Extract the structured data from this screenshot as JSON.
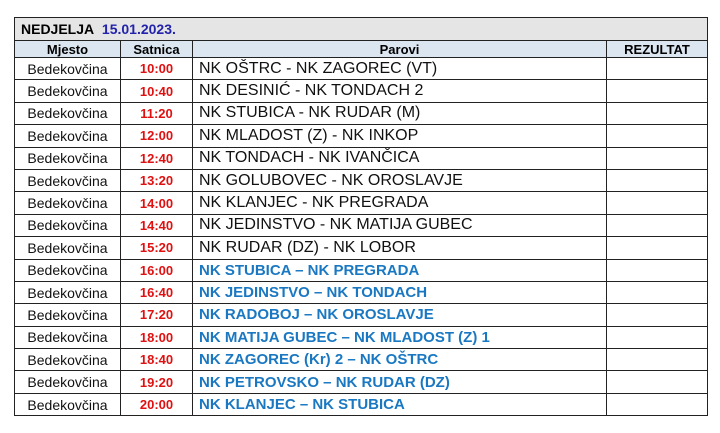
{
  "title": {
    "day": "NEDJELJA",
    "date": "15.01.2023."
  },
  "headers": {
    "mjesto": "Mjesto",
    "satnica": "Satnica",
    "parovi": "Parovi",
    "rezultat": "REZULTAT"
  },
  "colors": {
    "time": "#e01010",
    "highlight": "#1a78c2",
    "date": "#2222aa"
  },
  "rows": [
    {
      "mjesto": "Bedekovčina",
      "satnica": "10:00",
      "parovi": "NK OŠTRC - NK ZAGOREC (VT)",
      "rezultat": "",
      "hl": false
    },
    {
      "mjesto": "Bedekovčina",
      "satnica": "10:40",
      "parovi": "NK DESINIĆ - NK TONDACH 2",
      "rezultat": "",
      "hl": false
    },
    {
      "mjesto": "Bedekovčina",
      "satnica": "11:20",
      "parovi": "NK STUBICA - NK RUDAR (M)",
      "rezultat": "",
      "hl": false
    },
    {
      "mjesto": "Bedekovčina",
      "satnica": "12:00",
      "parovi": "NK MLADOST (Z) - NK INKOP",
      "rezultat": "",
      "hl": false
    },
    {
      "mjesto": "Bedekovčina",
      "satnica": "12:40",
      "parovi": "NK TONDACH - NK IVANČICA",
      "rezultat": "",
      "hl": false
    },
    {
      "mjesto": "Bedekovčina",
      "satnica": "13:20",
      "parovi": "NK GOLUBOVEC - NK OROSLAVJE",
      "rezultat": "",
      "hl": false
    },
    {
      "mjesto": "Bedekovčina",
      "satnica": "14:00",
      "parovi": "NK KLANJEC - NK PREGRADA",
      "rezultat": "",
      "hl": false
    },
    {
      "mjesto": "Bedekovčina",
      "satnica": "14:40",
      "parovi": "NK JEDINSTVO - NK MATIJA GUBEC",
      "rezultat": "",
      "hl": false
    },
    {
      "mjesto": "Bedekovčina",
      "satnica": "15:20",
      "parovi": "NK RUDAR (DZ) - NK LOBOR",
      "rezultat": "",
      "hl": false
    },
    {
      "mjesto": "Bedekovčina",
      "satnica": "16:00",
      "parovi": "NK STUBICA – NK PREGRADA",
      "rezultat": "",
      "hl": true
    },
    {
      "mjesto": "Bedekovčina",
      "satnica": "16:40",
      "parovi": "NK JEDINSTVO – NK TONDACH",
      "rezultat": "",
      "hl": true
    },
    {
      "mjesto": "Bedekovčina",
      "satnica": "17:20",
      "parovi": "NK RADOBOJ – NK OROSLAVJE",
      "rezultat": "",
      "hl": true
    },
    {
      "mjesto": "Bedekovčina",
      "satnica": "18:00",
      "parovi": "NK MATIJA GUBEC – NK MLADOST (Z) 1",
      "rezultat": "",
      "hl": true
    },
    {
      "mjesto": "Bedekovčina",
      "satnica": "18:40",
      "parovi": "NK ZAGOREC (Kr) 2 – NK OŠTRC",
      "rezultat": "",
      "hl": true
    },
    {
      "mjesto": "Bedekovčina",
      "satnica": "19:20",
      "parovi": "NK PETROVSKO – NK RUDAR (DZ)",
      "rezultat": "",
      "hl": true
    },
    {
      "mjesto": "Bedekovčina",
      "satnica": "20:00",
      "parovi": "NK KLANJEC – NK STUBICA",
      "rezultat": "",
      "hl": true
    }
  ]
}
